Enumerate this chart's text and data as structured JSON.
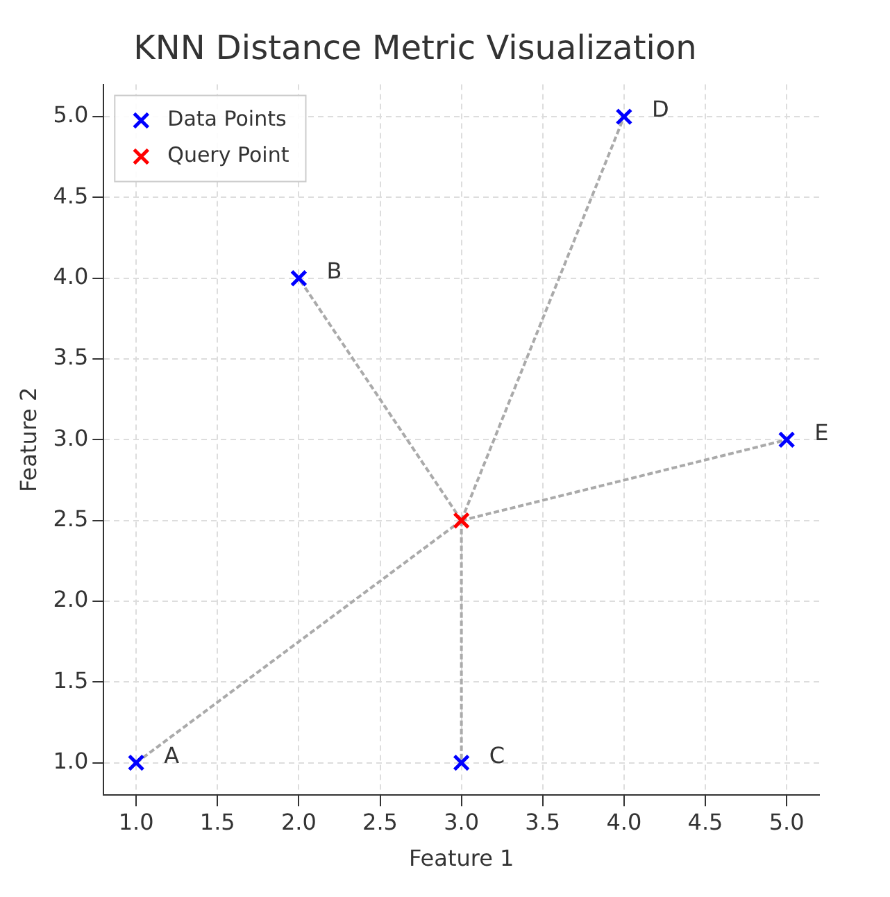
{
  "chart_data": {
    "type": "scatter",
    "title": "KNN Distance Metric Visualization",
    "xlabel": "Feature 1",
    "ylabel": "Feature 2",
    "xlim": [
      0.8,
      5.2
    ],
    "ylim": [
      0.8,
      5.2
    ],
    "xticks": [
      {
        "value": 1,
        "label": "1.0"
      },
      {
        "value": 1.5,
        "label": "1.5"
      },
      {
        "value": 2,
        "label": "2.0"
      },
      {
        "value": 2.5,
        "label": "2.5"
      },
      {
        "value": 3,
        "label": "3.0"
      },
      {
        "value": 3.5,
        "label": "3.5"
      },
      {
        "value": 4,
        "label": "4.0"
      },
      {
        "value": 4.5,
        "label": "4.5"
      },
      {
        "value": 5,
        "label": "5.0"
      }
    ],
    "yticks": [
      {
        "value": 1,
        "label": "1.0"
      },
      {
        "value": 1.5,
        "label": "1.5"
      },
      {
        "value": 2,
        "label": "2.0"
      },
      {
        "value": 2.5,
        "label": "2.5"
      },
      {
        "value": 3,
        "label": "3.0"
      },
      {
        "value": 3.5,
        "label": "3.5"
      },
      {
        "value": 4,
        "label": "4.0"
      },
      {
        "value": 4.5,
        "label": "4.5"
      },
      {
        "value": 5,
        "label": "5.0"
      }
    ],
    "grid": true,
    "legend": "top left",
    "marker": "cross",
    "series": [
      {
        "name": "Data Points",
        "type": "scatter",
        "color": "#0000ff",
        "x": [
          1,
          2,
          3,
          4,
          5
        ],
        "values": [
          1,
          4,
          1,
          5,
          3
        ]
      },
      {
        "name": "Query Point",
        "type": "scatter",
        "color": "#ff0000",
        "x": [
          3
        ],
        "values": [
          2.5
        ]
      },
      {
        "type": "line",
        "color": "#aaaaaa",
        "line_style": "dashed",
        "marker": "none",
        "x": [
          3,
          1
        ],
        "values": [
          2.5,
          1
        ]
      },
      {
        "type": "line",
        "color": "#aaaaaa",
        "line_style": "dashed",
        "marker": "none",
        "x": [
          3,
          2
        ],
        "values": [
          2.5,
          4
        ]
      },
      {
        "type": "line",
        "color": "#aaaaaa",
        "line_style": "dashed",
        "marker": "none",
        "x": [
          3,
          3
        ],
        "values": [
          2.5,
          1
        ]
      },
      {
        "type": "line",
        "color": "#aaaaaa",
        "line_style": "dashed",
        "marker": "none",
        "x": [
          3,
          4
        ],
        "values": [
          2.5,
          5
        ]
      },
      {
        "type": "line",
        "color": "#aaaaaa",
        "line_style": "dashed",
        "marker": "none",
        "x": [
          3,
          5
        ],
        "values": [
          2.5,
          3
        ]
      }
    ],
    "annotations": [
      {
        "text": "A",
        "x": 1,
        "y": 1
      },
      {
        "text": "B",
        "x": 2,
        "y": 4
      },
      {
        "text": "C",
        "x": 3,
        "y": 1
      },
      {
        "text": "D",
        "x": 4,
        "y": 5
      },
      {
        "text": "E",
        "x": 5,
        "y": 3
      }
    ]
  }
}
